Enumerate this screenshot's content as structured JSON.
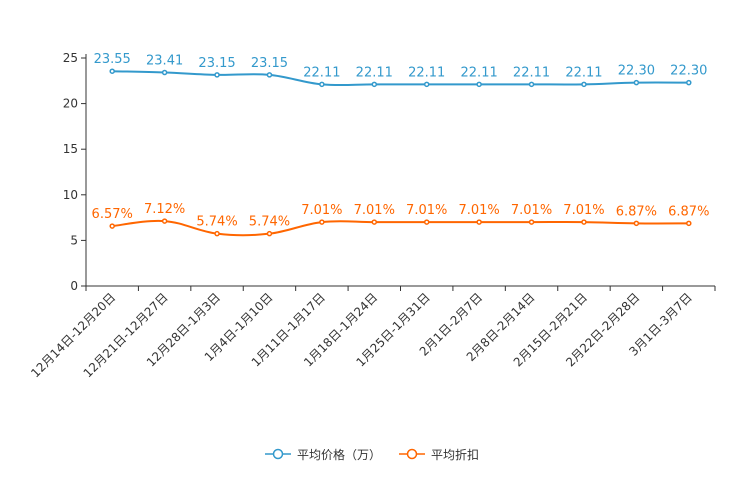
{
  "chart_data": {
    "type": "line",
    "categories": [
      "12月14日-12月20日",
      "12月21日-12月27日",
      "12月28日-1月3日",
      "1月4日-1月10日",
      "1月11日-1月17日",
      "1月18日-1月24日",
      "1月25日-1月31日",
      "2月1日-2月7日",
      "2月8日-2月14日",
      "2月15日-2月21日",
      "2月22日-2月28日",
      "3月1日-3月7日"
    ],
    "ylim": [
      0,
      25
    ],
    "yticks": [
      0,
      5,
      10,
      15,
      20,
      25
    ],
    "series": [
      {
        "name": "平均价格（万）",
        "color": "#3399cc",
        "values": [
          23.55,
          23.41,
          23.15,
          23.15,
          22.11,
          22.11,
          22.11,
          22.11,
          22.11,
          22.11,
          22.3,
          22.3
        ],
        "labels": [
          "23.55",
          "23.41",
          "23.15",
          "23.15",
          "22.11",
          "22.11",
          "22.11",
          "22.11",
          "22.11",
          "22.11",
          "22.30",
          "22.30"
        ]
      },
      {
        "name": "平均折扣",
        "color": "#ff6600",
        "values": [
          6.57,
          7.12,
          5.74,
          5.74,
          7.01,
          7.01,
          7.01,
          7.01,
          7.01,
          7.01,
          6.87,
          6.87
        ],
        "labels": [
          "6.57%",
          "7.12%",
          "5.74%",
          "5.74%",
          "7.01%",
          "7.01%",
          "7.01%",
          "7.01%",
          "7.01%",
          "7.01%",
          "6.87%",
          "6.87%"
        ]
      }
    ]
  },
  "legend": {
    "items": [
      "平均价格（万）",
      "平均折扣"
    ],
    "icon": "circle-line-icon"
  }
}
